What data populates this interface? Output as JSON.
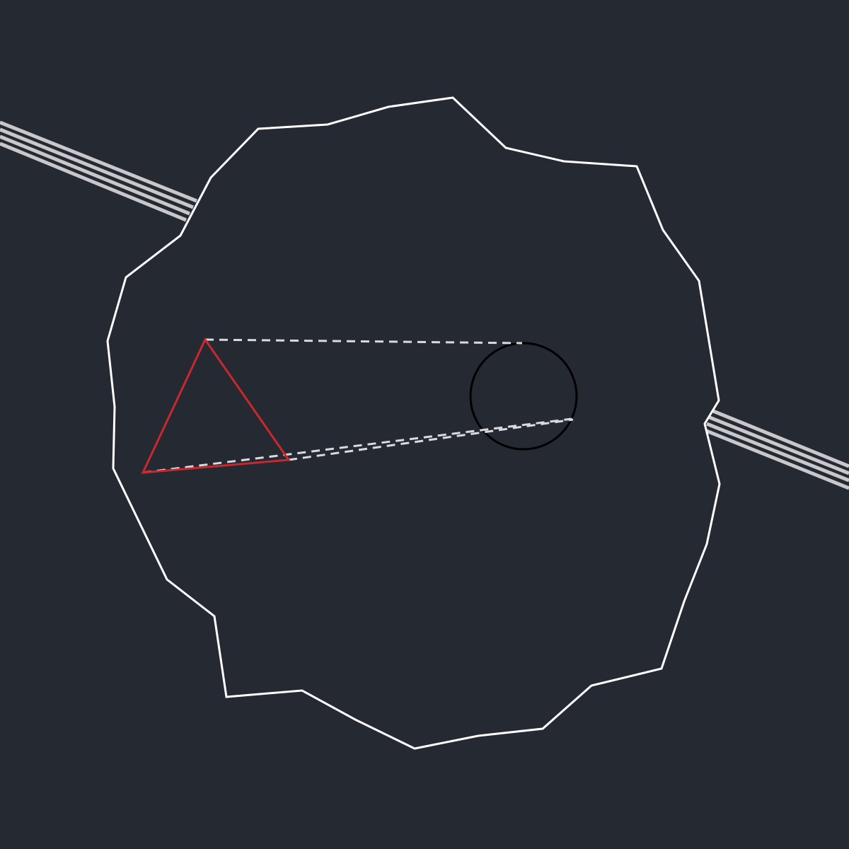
{
  "scene": {
    "background": "#252932",
    "boundary": {
      "kind": "irregular-polygon",
      "stroke": "#ffffff"
    },
    "player": {
      "kind": "triangle-icon",
      "stroke": "#c8282e",
      "facing": "up"
    },
    "target": {
      "kind": "circle-icon",
      "stroke": "#000000"
    },
    "sight_lines": {
      "stroke": "#d9d9de",
      "style": "dashed"
    },
    "rails": {
      "stroke": "#c8c8cc",
      "count": 4
    }
  }
}
